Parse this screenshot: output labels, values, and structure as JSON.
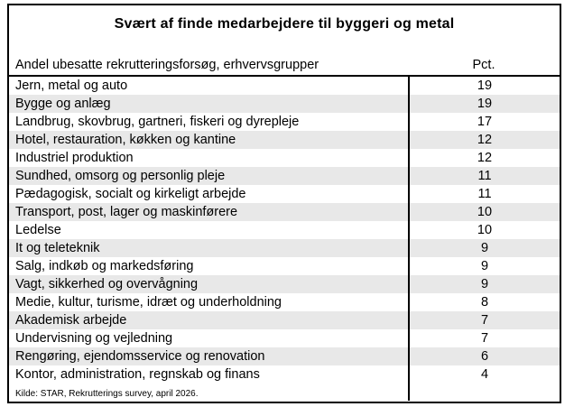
{
  "title": "Svært af finde medarbejdere til byggeri og metal",
  "table": {
    "header": {
      "label": "Andel ubesatte rekrutteringsforsøg, erhvervsgrupper",
      "value": "Pct."
    },
    "rows": [
      {
        "label": "Jern, metal og auto",
        "value": "19"
      },
      {
        "label": "Bygge og anlæg",
        "value": "19"
      },
      {
        "label": "Landbrug, skovbrug, gartneri, fiskeri og dyrepleje",
        "value": "17"
      },
      {
        "label": "Hotel, restauration, køkken og kantine",
        "value": "12"
      },
      {
        "label": "Industriel produktion",
        "value": "12"
      },
      {
        "label": "Sundhed, omsorg og personlig pleje",
        "value": "11"
      },
      {
        "label": "Pædagogisk, socialt og kirkeligt arbejde",
        "value": "11"
      },
      {
        "label": "Transport, post, lager og maskinførere",
        "value": "10"
      },
      {
        "label": "Ledelse",
        "value": "10"
      },
      {
        "label": "It og teleteknik",
        "value": "9"
      },
      {
        "label": "Salg, indkøb og markedsføring",
        "value": "9"
      },
      {
        "label": "Vagt, sikkerhed og overvågning",
        "value": "9"
      },
      {
        "label": "Medie, kultur, turisme, idræt og underholdning",
        "value": "8"
      },
      {
        "label": "Akademisk arbejde",
        "value": "7"
      },
      {
        "label": "Undervisning og vejledning",
        "value": "7"
      },
      {
        "label": "Rengøring, ejendomsservice og renovation",
        "value": "6"
      },
      {
        "label": "Kontor, administration, regnskab og finans",
        "value": "4"
      }
    ]
  },
  "footer": {
    "source": "Kilde: STAR, Rekrutterings survey, april 2026."
  },
  "colors": {
    "row_alt_background": "#e8e8e8",
    "border": "#000000",
    "text": "#000000",
    "background": "#ffffff"
  },
  "chart_data": {
    "type": "table",
    "title": "Svært af finde medarbejdere til byggeri og metal",
    "columns": [
      "Andel ubesatte rekrutteringsforsøg, erhvervsgrupper",
      "Pct."
    ],
    "categories": [
      "Jern, metal og auto",
      "Bygge og anlæg",
      "Landbrug, skovbrug, gartneri, fiskeri og dyrepleje",
      "Hotel, restauration, køkken og kantine",
      "Industriel produktion",
      "Sundhed, omsorg og personlig pleje",
      "Pædagogisk, socialt og kirkeligt arbejde",
      "Transport, post, lager og maskinførere",
      "Ledelse",
      "It og teleteknik",
      "Salg, indkøb og markedsføring",
      "Vagt, sikkerhed og overvågning",
      "Medie, kultur, turisme, idræt og underholdning",
      "Akademisk arbejde",
      "Undervisning og vejledning",
      "Rengøring, ejendomsservice og renovation",
      "Kontor, administration, regnskab og finans"
    ],
    "values": [
      19,
      19,
      17,
      12,
      12,
      11,
      11,
      10,
      10,
      9,
      9,
      9,
      8,
      7,
      7,
      6,
      4
    ],
    "unit": "Pct.",
    "source": "Kilde: STAR, Rekrutterings survey, april 2026."
  }
}
